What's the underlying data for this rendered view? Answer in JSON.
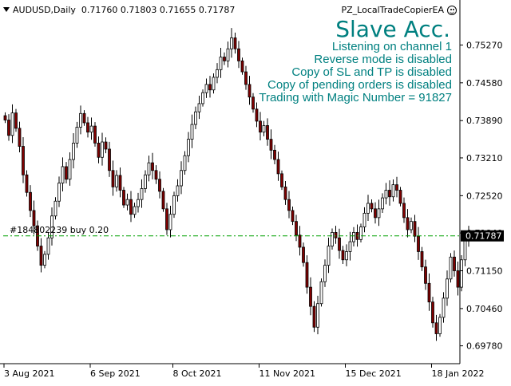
{
  "header": {
    "symbol": "AUDUSD,Daily",
    "ohlc": "0.71760 0.71803 0.71655 0.71787",
    "ea_name": "PZ_LocalTradeCopierEA",
    "ea_icon": "smiley-icon"
  },
  "overlay": {
    "title": "Slave Acc.",
    "lines": [
      "Listening on channel 1",
      "Reverse mode is disabled",
      "Copy of SL and TP is disabled",
      "Copy of pending orders is disabled",
      "Trading with Magic Number = 91827"
    ],
    "color": "#008080"
  },
  "order_line": {
    "label": "#184802239 buy 0.20",
    "price": 0.71787,
    "price_label": "0.71787",
    "color": "#00A000"
  },
  "chart_data": {
    "type": "candlestick",
    "symbol": "AUDUSD",
    "timeframe": "Daily",
    "y_ticks": [
      0.7527,
      0.7458,
      0.7389,
      0.7321,
      0.7252,
      0.7184,
      0.7115,
      0.7046,
      0.6978
    ],
    "y_tick_labels": [
      "0.75270",
      "0.74580",
      "0.73890",
      "0.73210",
      "0.72520",
      "0.71840",
      "0.71150",
      "0.70460",
      "0.69780"
    ],
    "ylim": [
      0.696,
      0.758
    ],
    "x_tick_labels": [
      "3 Aug 2021",
      "6 Sep 2021",
      "8 Oct 2021",
      "11 Nov 2021",
      "15 Dec 2021",
      "18 Jan 2022"
    ],
    "x_tick_index": [
      0,
      24,
      47,
      71,
      95,
      119
    ],
    "grid": false,
    "bull_color": "#ffffff",
    "bear_color": "#800000",
    "outline_color": "#000000",
    "closes": [
      0.739,
      0.7362,
      0.7403,
      0.7375,
      0.7342,
      0.729,
      0.7258,
      0.7225,
      0.7197,
      0.716,
      0.7125,
      0.7145,
      0.7175,
      0.7215,
      0.7242,
      0.7275,
      0.7305,
      0.7282,
      0.7318,
      0.7348,
      0.7377,
      0.7402,
      0.7385,
      0.7368,
      0.7379,
      0.7348,
      0.7322,
      0.735,
      0.7337,
      0.7298,
      0.7268,
      0.7289,
      0.7262,
      0.7235,
      0.7245,
      0.7218,
      0.7232,
      0.7245,
      0.7265,
      0.729,
      0.7312,
      0.7298,
      0.7282,
      0.726,
      0.7228,
      0.719,
      0.7218,
      0.7252,
      0.727,
      0.7298,
      0.7325,
      0.7355,
      0.7382,
      0.7405,
      0.742,
      0.744,
      0.7455,
      0.7445,
      0.7468,
      0.7482,
      0.7505,
      0.7498,
      0.752,
      0.754,
      0.752,
      0.7498,
      0.7478,
      0.7455,
      0.7432,
      0.741,
      0.7388,
      0.7368,
      0.738,
      0.7355,
      0.7335,
      0.7318,
      0.7292,
      0.7268,
      0.7245,
      0.7225,
      0.7205,
      0.718,
      0.7158,
      0.713,
      0.7085,
      0.705,
      0.7012,
      0.7055,
      0.7095,
      0.7125,
      0.716,
      0.7185,
      0.7175,
      0.7152,
      0.7135,
      0.715,
      0.7168,
      0.7185,
      0.7172,
      0.7195,
      0.722,
      0.7238,
      0.7228,
      0.7212,
      0.7228,
      0.7248,
      0.7262,
      0.725,
      0.7272,
      0.7262,
      0.7238,
      0.7212,
      0.719,
      0.7205,
      0.7178,
      0.715,
      0.7122,
      0.7092,
      0.7058,
      0.702,
      0.7,
      0.703,
      0.7065,
      0.71,
      0.714,
      0.7115,
      0.7085,
      0.7135,
      0.7175,
      0.7179
    ]
  }
}
